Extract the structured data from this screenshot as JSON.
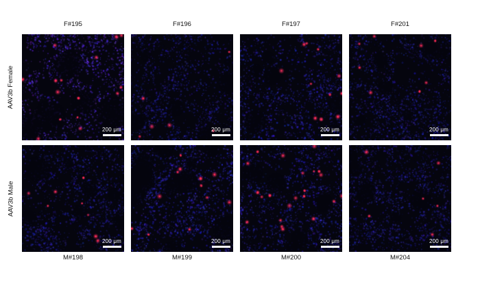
{
  "figure": {
    "scale_bar": {
      "label": "200 μm"
    },
    "colors": {
      "page_background": "#ffffff",
      "micrograph_background": "#05050e",
      "tissue_blue": "#2a2ab4",
      "signal_red": "#ff2d55",
      "scale_bar_white": "#ffffff",
      "label_text": "#111111"
    },
    "rows": [
      {
        "row_label": "AAV3b Female",
        "label_position": "top",
        "tiles": [
          {
            "label": "F#195",
            "seed": 1101,
            "brightness": 1.3,
            "red_count": 15,
            "red_area": [
              0.0,
              0.0,
              1.0,
              1.0
            ],
            "holes": 5,
            "hole_size": 18,
            "purple": true
          },
          {
            "label": "F#196",
            "seed": 2202,
            "brightness": 0.85,
            "red_count": 6,
            "red_area": [
              0.0,
              0.1,
              1.0,
              1.0
            ],
            "holes": 7,
            "hole_size": 12,
            "purple": false
          },
          {
            "label": "F#197",
            "seed": 3303,
            "brightness": 1.0,
            "red_count": 12,
            "red_area": [
              0.1,
              0.0,
              1.0,
              0.9
            ],
            "holes": 6,
            "hole_size": 14,
            "purple": false
          },
          {
            "label": "F#201",
            "seed": 4404,
            "brightness": 0.8,
            "red_count": 8,
            "red_area": [
              0.0,
              0.0,
              1.0,
              0.6
            ],
            "holes": 6,
            "hole_size": 12,
            "purple": false
          }
        ]
      },
      {
        "row_label": "AAV3b Male",
        "label_position": "bottom",
        "tiles": [
          {
            "label": "M#198",
            "seed": 5505,
            "brightness": 0.85,
            "red_count": 8,
            "red_area": [
              0.0,
              0.3,
              0.9,
              1.0
            ],
            "holes": 7,
            "hole_size": 13,
            "purple": false
          },
          {
            "label": "M#199",
            "seed": 6606,
            "brightness": 1.05,
            "red_count": 12,
            "red_area": [
              0.0,
              0.0,
              1.0,
              1.0
            ],
            "holes": 11,
            "hole_size": 16,
            "purple": false
          },
          {
            "label": "M#200",
            "seed": 7707,
            "brightness": 0.95,
            "red_count": 22,
            "red_area": [
              0.0,
              0.0,
              1.0,
              0.8
            ],
            "holes": 7,
            "hole_size": 13,
            "purple": false
          },
          {
            "label": "M#204",
            "seed": 8808,
            "brightness": 0.8,
            "red_count": 6,
            "red_area": [
              0.0,
              0.0,
              1.0,
              1.0
            ],
            "holes": 6,
            "hole_size": 12,
            "purple": false
          }
        ]
      }
    ]
  }
}
